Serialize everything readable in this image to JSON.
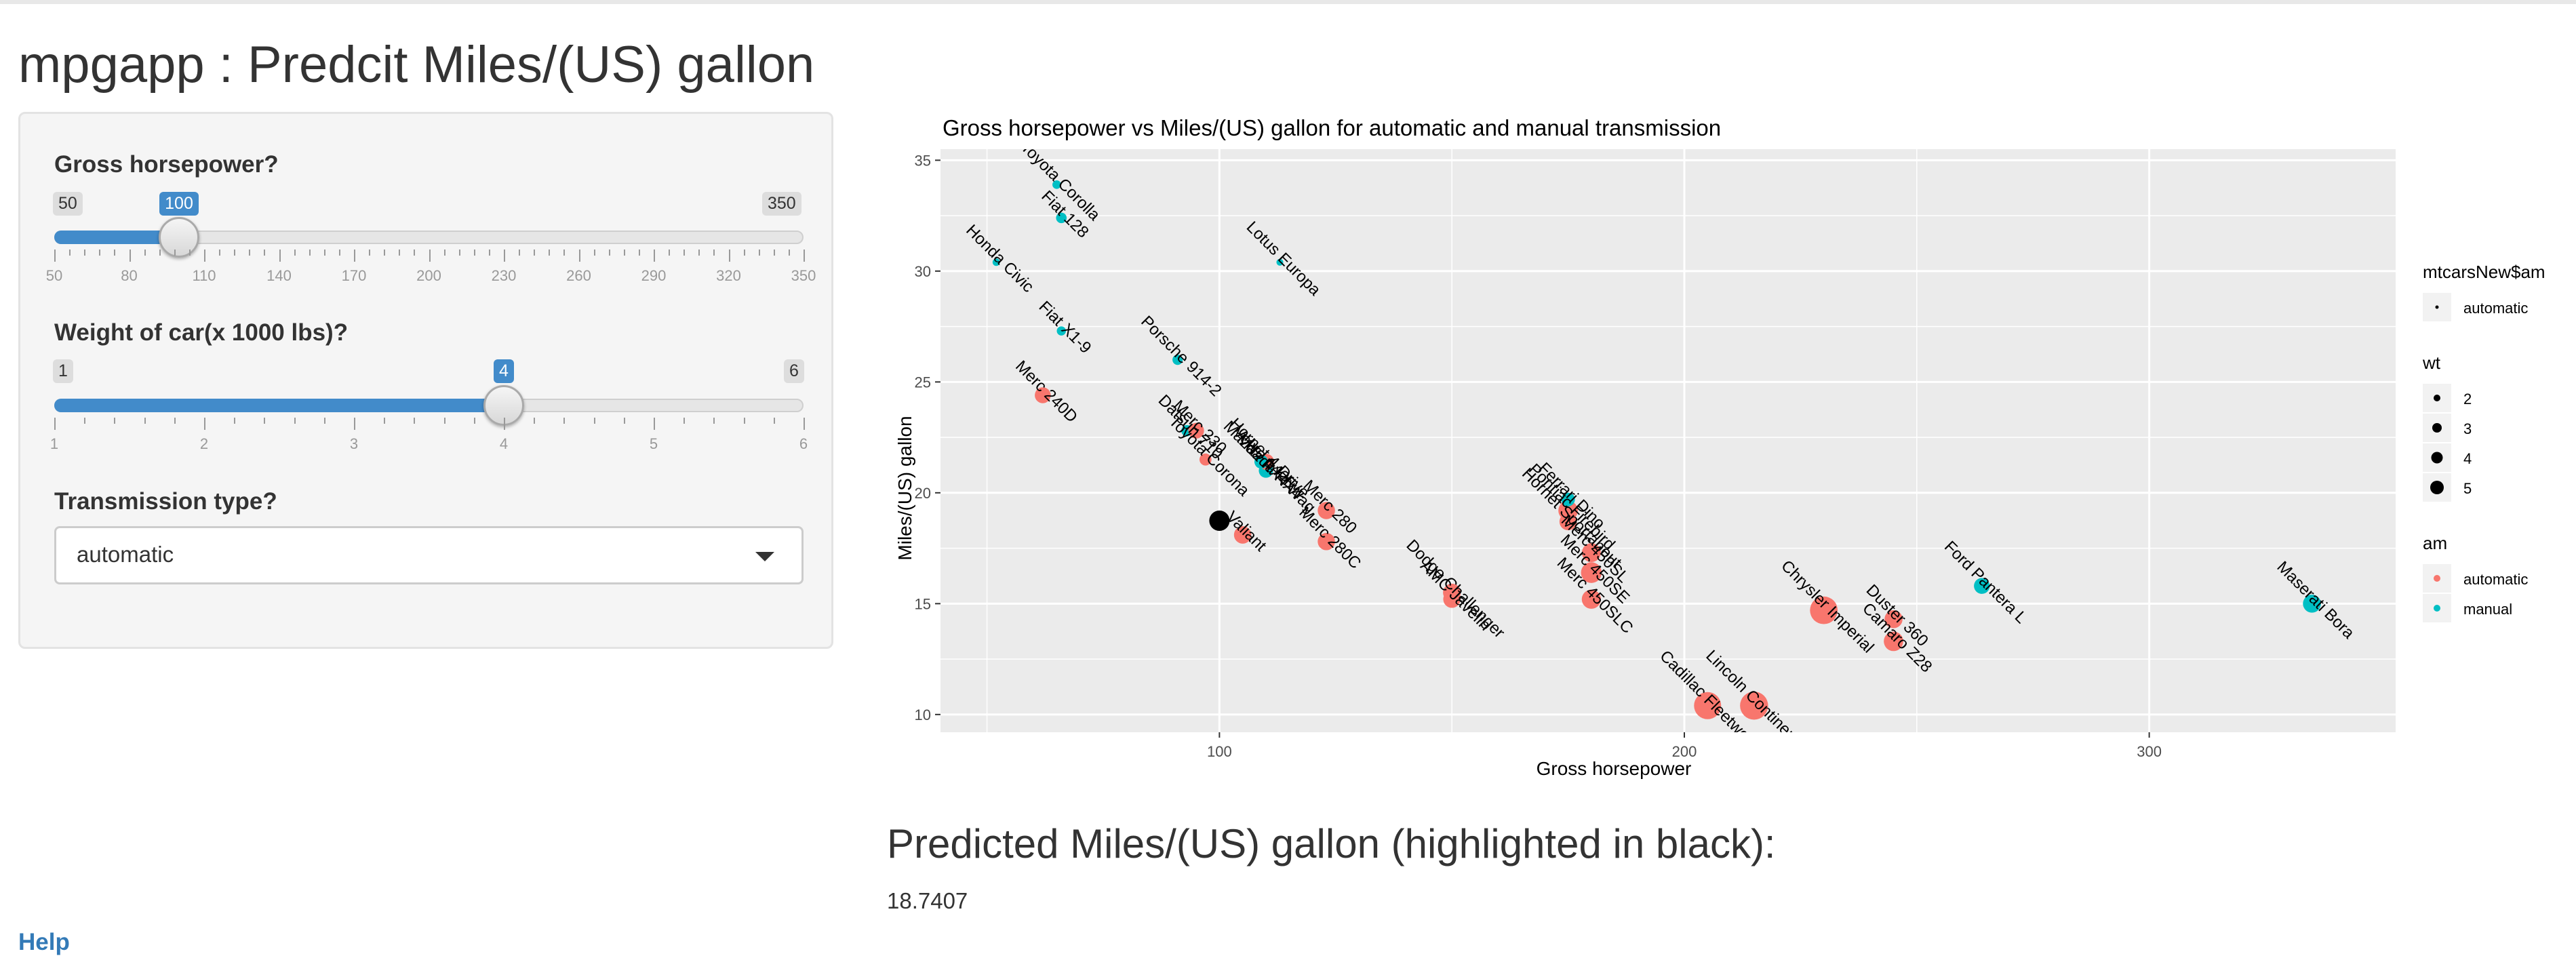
{
  "app": {
    "title": "mpgapp : Predcit Miles/(US) gallon"
  },
  "sidebar": {
    "horsepower": {
      "label": "Gross horsepower?",
      "min": 50,
      "max": 350,
      "value": 100,
      "ticks": [
        "50",
        "80",
        "110",
        "140",
        "170",
        "200",
        "230",
        "260",
        "290",
        "320",
        "350"
      ]
    },
    "weight": {
      "label": "Weight of car(x 1000 lbs)?",
      "min": 1,
      "max": 6,
      "value": 4,
      "ticks": [
        "1",
        "2",
        "3",
        "4",
        "5",
        "6"
      ]
    },
    "transmission": {
      "label": "Transmission type?",
      "selected": "automatic"
    }
  },
  "colors": {
    "automatic": "#F8766D",
    "manual": "#00BFC4",
    "predicted": "#000000",
    "slider_accent": "#428bca",
    "panel_bg": "#EBEBEB"
  },
  "chart_data": {
    "type": "scatter",
    "title": "Gross horsepower vs Miles/(US) gallon for automatic and manual transmission",
    "xlabel": "Gross horsepower",
    "ylabel": "Miles/(US) gallon",
    "xlim": [
      40,
      353
    ],
    "ylim": [
      9.2,
      35.5
    ],
    "xticks": [
      100,
      200,
      300
    ],
    "yticks": [
      10,
      15,
      20,
      25,
      30,
      35
    ],
    "grid": true,
    "legend": {
      "placement": "right",
      "groups": [
        {
          "title": "mtcarsNew$am",
          "entries": [
            {
              "label": "automatic",
              "size": 5
            }
          ]
        },
        {
          "title": "wt",
          "entries": [
            {
              "label": "2",
              "size": 10
            },
            {
              "label": "3",
              "size": 14
            },
            {
              "label": "4",
              "size": 17
            },
            {
              "label": "5",
              "size": 20
            }
          ]
        },
        {
          "title": "am",
          "entries": [
            {
              "label": "automatic",
              "color": "#F8766D",
              "size": 10
            },
            {
              "label": "manual",
              "color": "#00BFC4",
              "size": 10
            }
          ]
        }
      ]
    },
    "points": [
      {
        "label": "Mazda RX4",
        "x": 110,
        "y": 21.0,
        "wt": 2.62,
        "am": "manual"
      },
      {
        "label": "Mazda RX4 Wag",
        "x": 110,
        "y": 21.0,
        "wt": 2.875,
        "am": "manual"
      },
      {
        "label": "Datsun 710",
        "x": 93,
        "y": 22.8,
        "wt": 2.32,
        "am": "manual"
      },
      {
        "label": "Hornet 4 Drive",
        "x": 110,
        "y": 21.4,
        "wt": 3.215,
        "am": "automatic"
      },
      {
        "label": "Hornet Sportabout",
        "x": 175,
        "y": 18.7,
        "wt": 3.44,
        "am": "automatic"
      },
      {
        "label": "Valiant",
        "x": 105,
        "y": 18.1,
        "wt": 3.46,
        "am": "automatic"
      },
      {
        "label": "Duster 360",
        "x": 245,
        "y": 14.3,
        "wt": 3.57,
        "am": "automatic"
      },
      {
        "label": "Merc 240D",
        "x": 62,
        "y": 24.4,
        "wt": 3.19,
        "am": "automatic"
      },
      {
        "label": "Merc 230",
        "x": 95,
        "y": 22.8,
        "wt": 3.15,
        "am": "automatic"
      },
      {
        "label": "Merc 280",
        "x": 123,
        "y": 19.2,
        "wt": 3.44,
        "am": "automatic"
      },
      {
        "label": "Merc 280C",
        "x": 123,
        "y": 17.8,
        "wt": 3.44,
        "am": "automatic"
      },
      {
        "label": "Merc 450SE",
        "x": 180,
        "y": 16.4,
        "wt": 4.07,
        "am": "automatic"
      },
      {
        "label": "Merc 450SL",
        "x": 180,
        "y": 17.3,
        "wt": 3.73,
        "am": "automatic"
      },
      {
        "label": "Merc 450SLC",
        "x": 180,
        "y": 15.2,
        "wt": 3.78,
        "am": "automatic"
      },
      {
        "label": "Cadillac Fleetwood",
        "x": 205,
        "y": 10.4,
        "wt": 5.25,
        "am": "automatic"
      },
      {
        "label": "Lincoln Continental",
        "x": 215,
        "y": 10.4,
        "wt": 5.424,
        "am": "automatic"
      },
      {
        "label": "Chrysler Imperial",
        "x": 230,
        "y": 14.7,
        "wt": 5.345,
        "am": "automatic"
      },
      {
        "label": "Fiat 128",
        "x": 66,
        "y": 32.4,
        "wt": 2.2,
        "am": "manual"
      },
      {
        "label": "Honda Civic",
        "x": 52,
        "y": 30.4,
        "wt": 1.615,
        "am": "manual"
      },
      {
        "label": "Toyota Corolla",
        "x": 65,
        "y": 33.9,
        "wt": 1.835,
        "am": "manual"
      },
      {
        "label": "Toyota Corona",
        "x": 97,
        "y": 21.5,
        "wt": 2.465,
        "am": "automatic"
      },
      {
        "label": "Dodge Challenger",
        "x": 150,
        "y": 15.5,
        "wt": 3.52,
        "am": "automatic"
      },
      {
        "label": "AMC Javelin",
        "x": 150,
        "y": 15.2,
        "wt": 3.435,
        "am": "automatic"
      },
      {
        "label": "Camaro Z28",
        "x": 245,
        "y": 13.3,
        "wt": 3.84,
        "am": "automatic"
      },
      {
        "label": "Pontiac Firebird",
        "x": 175,
        "y": 19.2,
        "wt": 3.845,
        "am": "automatic"
      },
      {
        "label": "Fiat X1-9",
        "x": 66,
        "y": 27.3,
        "wt": 1.935,
        "am": "manual"
      },
      {
        "label": "Porsche 914-2",
        "x": 91,
        "y": 26.0,
        "wt": 2.14,
        "am": "manual"
      },
      {
        "label": "Lotus Europa",
        "x": 113,
        "y": 30.4,
        "wt": 1.513,
        "am": "manual"
      },
      {
        "label": "Ford Pantera L",
        "x": 264,
        "y": 15.8,
        "wt": 3.17,
        "am": "manual"
      },
      {
        "label": "Ferrari Dino",
        "x": 175,
        "y": 19.7,
        "wt": 2.77,
        "am": "manual"
      },
      {
        "label": "Maserati Bora",
        "x": 335,
        "y": 15.0,
        "wt": 3.57,
        "am": "manual"
      },
      {
        "label": "Volvo 142E",
        "x": 109,
        "y": 21.4,
        "wt": 2.78,
        "am": "manual"
      }
    ],
    "predicted_point": {
      "x": 100,
      "y": 18.7407,
      "wt": 4
    }
  },
  "prediction": {
    "title": "Predicted Miles/(US) gallon (highlighted in black):",
    "value": "18.7407"
  },
  "help": {
    "label": "Help"
  }
}
